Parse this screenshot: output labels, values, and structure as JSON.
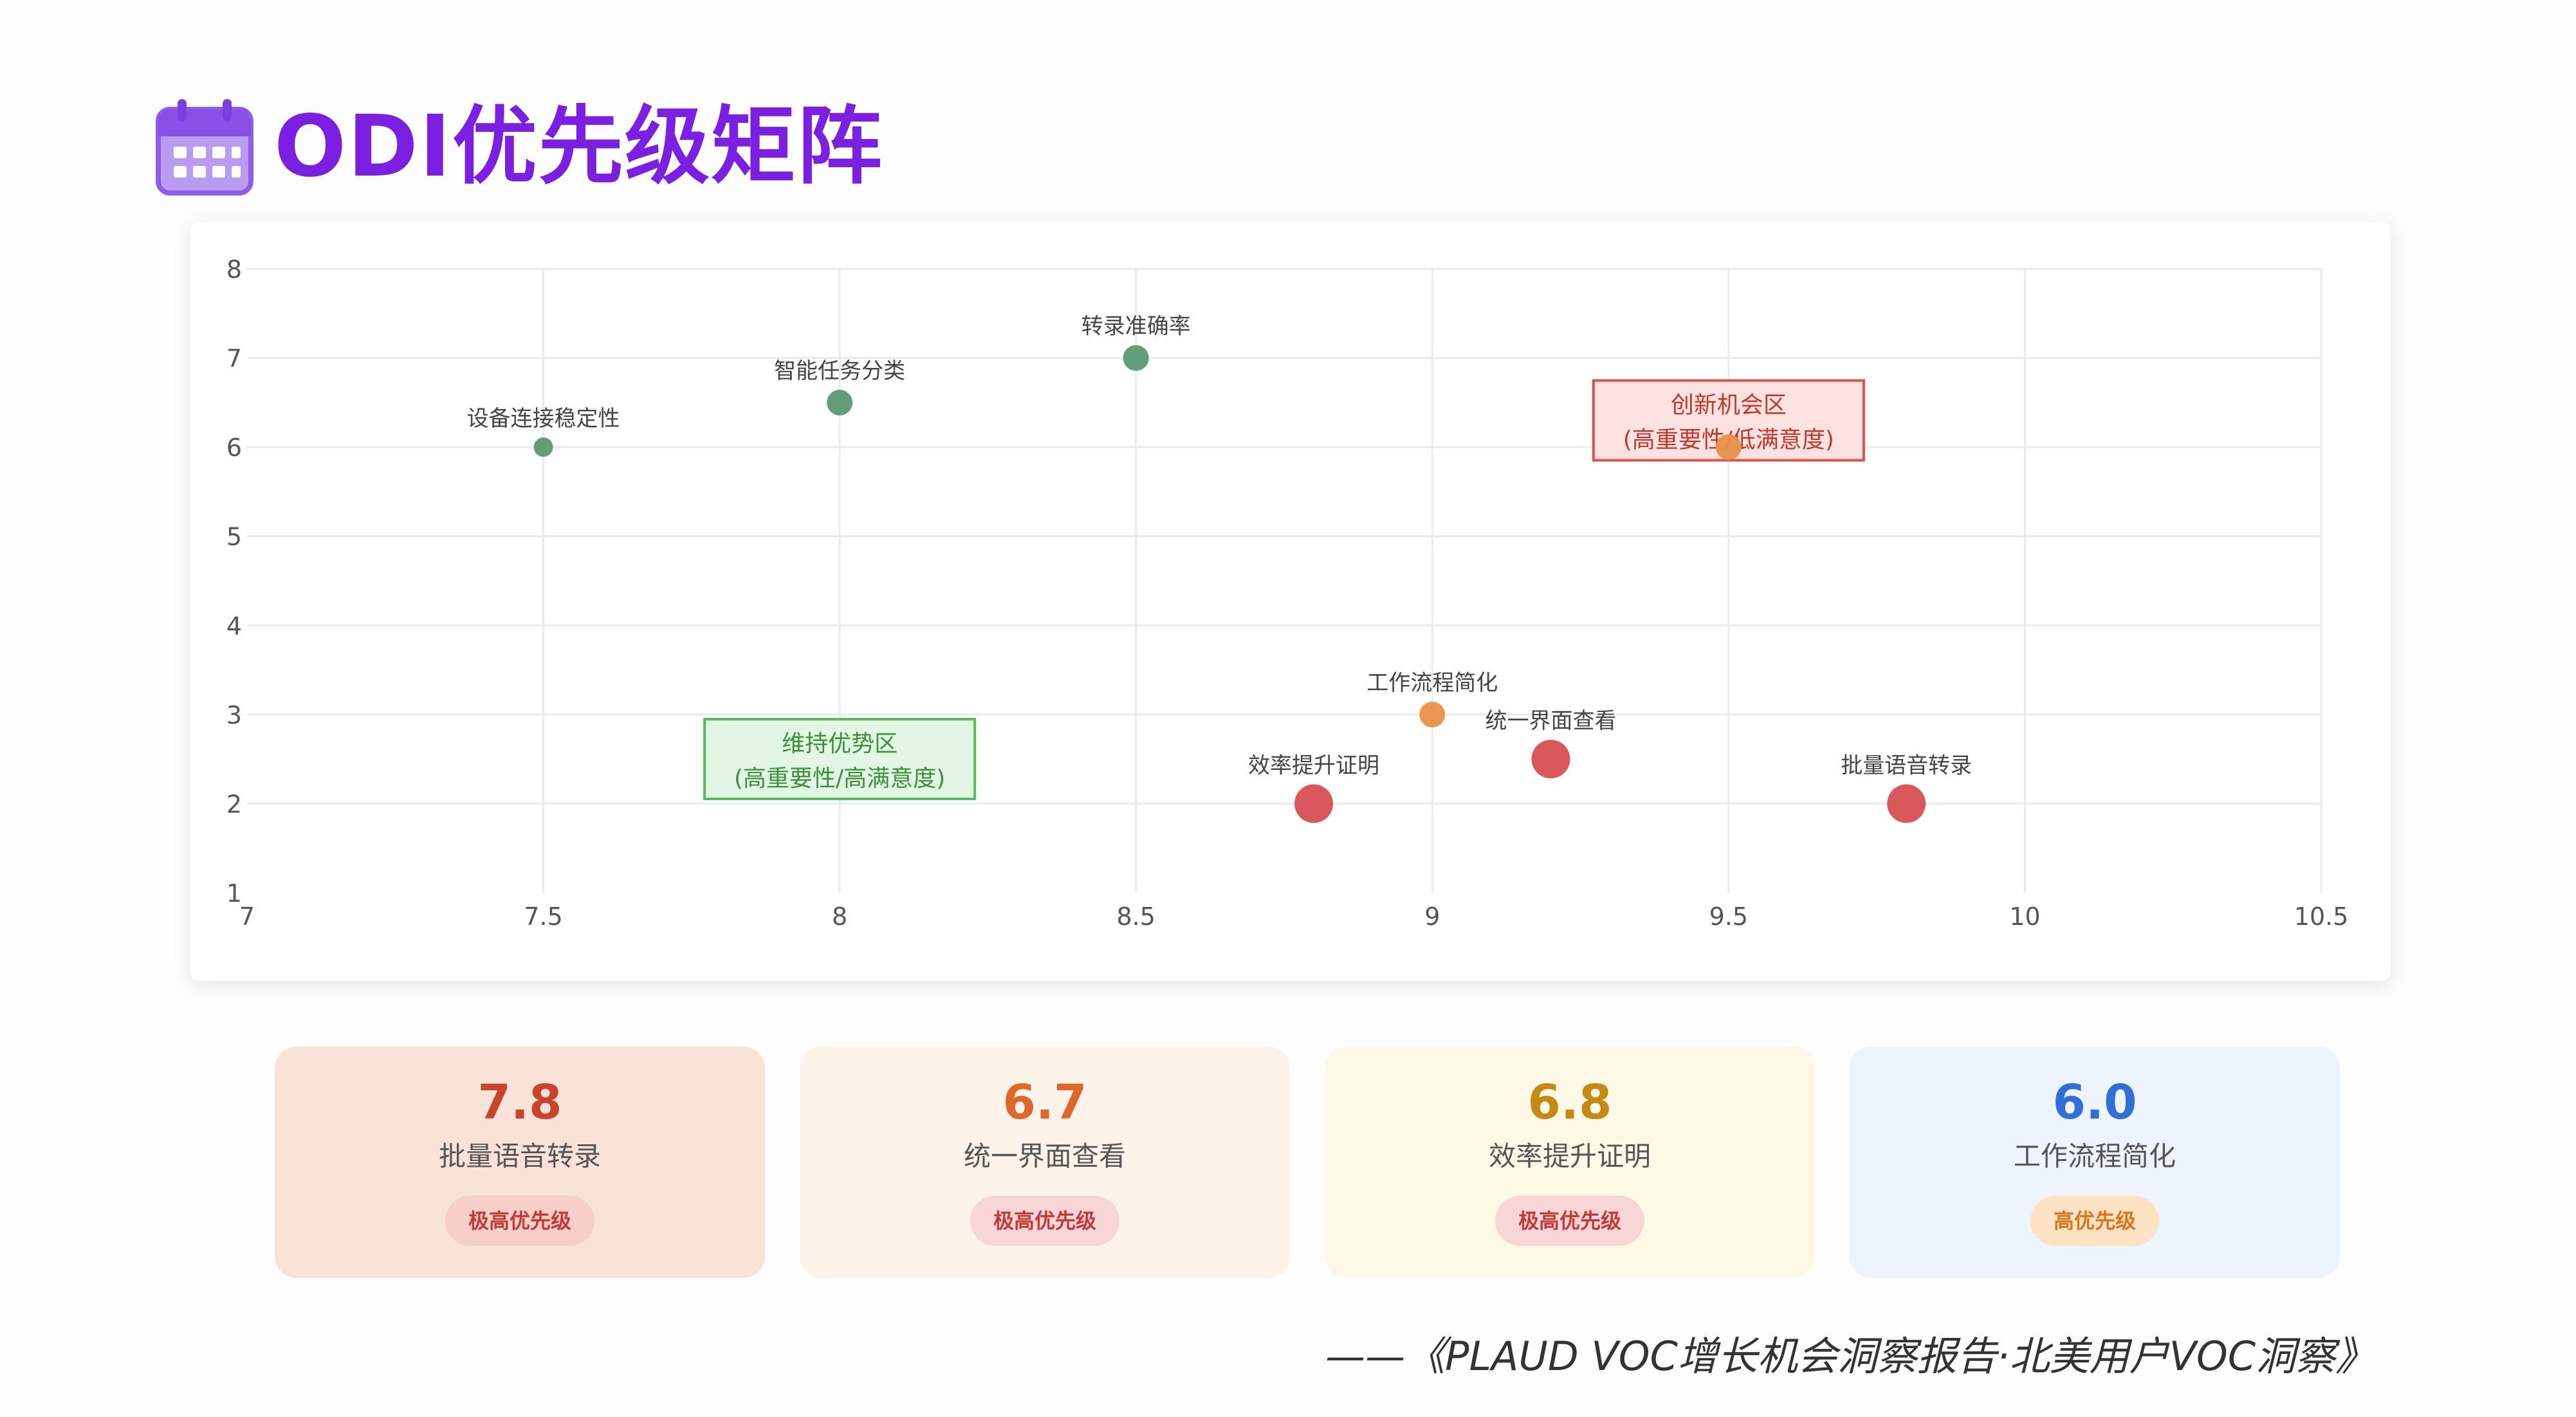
{
  "header": {
    "title": "ODI优先级矩阵",
    "icon": "calendar-icon"
  },
  "chart_data": {
    "type": "scatter",
    "xlim": [
      7,
      10.5
    ],
    "ylim": [
      1,
      8
    ],
    "x_ticks": [
      7,
      7.5,
      8,
      8.5,
      9,
      9.5,
      10,
      10.5
    ],
    "y_ticks": [
      1,
      2,
      3,
      4,
      5,
      6,
      7,
      8
    ],
    "grid": true,
    "points": [
      {
        "label": "设备连接稳定性",
        "x": 7.5,
        "y": 6,
        "color": "#5a9a72",
        "size": "small"
      },
      {
        "label": "智能任务分类",
        "x": 8,
        "y": 6.5,
        "color": "#5a9a72",
        "size": "medium"
      },
      {
        "label": "转录准确率",
        "x": 8.5,
        "y": 7,
        "color": "#5a9a72",
        "size": "medium"
      },
      {
        "label": "",
        "x": 9.5,
        "y": 6,
        "color": "#e8914a",
        "size": "medium"
      },
      {
        "label": "工作流程简化",
        "x": 9,
        "y": 3,
        "color": "#e8914a",
        "size": "medium"
      },
      {
        "label": "统一界面查看",
        "x": 9.2,
        "y": 2.5,
        "color": "#d64f52",
        "size": "large"
      },
      {
        "label": "效率提升证明",
        "x": 8.8,
        "y": 2,
        "color": "#d64f52",
        "size": "large"
      },
      {
        "label": "批量语音转录",
        "x": 9.8,
        "y": 2,
        "color": "#d64f52",
        "size": "large"
      }
    ],
    "annotations": [
      {
        "lines": [
          "创新机会区",
          "(高重要性/低满意度)"
        ],
        "x": 9.5,
        "y": 6.3,
        "border": "#d9534f",
        "fill": "#fde2e2",
        "text_color": "#c0392b"
      },
      {
        "lines": [
          "维持优势区",
          "(高重要性/高满意度)"
        ],
        "x": 8,
        "y": 2.5,
        "border": "#5cb85c",
        "fill": "#e3f5e3",
        "text_color": "#3c8f3c"
      }
    ]
  },
  "cards": [
    {
      "score": "7.8",
      "label": "批量语音转录",
      "badge": "极高优先级",
      "bg": "#f9e3d9",
      "score_color": "#c8452c",
      "badge_bg": "#f6cfc8",
      "badge_color": "#c23a3a"
    },
    {
      "score": "6.7",
      "label": "统一界面查看",
      "badge": "极高优先级",
      "bg": "#fdf3e8",
      "score_color": "#e0672a",
      "badge_bg": "#f8d6d6",
      "badge_color": "#c23a3a"
    },
    {
      "score": "6.8",
      "label": "效率提升证明",
      "badge": "极高优先级",
      "bg": "#fdf9e6",
      "score_color": "#c58a14",
      "badge_bg": "#f8d6d6",
      "badge_color": "#c23a3a"
    },
    {
      "score": "6.0",
      "label": "工作流程简化",
      "badge": "高优先级",
      "bg": "#eef4fd",
      "score_color": "#2f6fd6",
      "badge_bg": "#fde3c4",
      "badge_color": "#d8761e"
    }
  ],
  "footer": {
    "citation": "——《PLAUD VOC增长机会洞察报告·北美用户VOC洞察》"
  }
}
